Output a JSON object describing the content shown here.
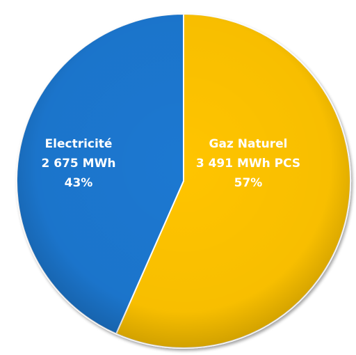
{
  "chart_data": {
    "type": "pie",
    "title": "",
    "slices": [
      {
        "name": "Gaz Naturel",
        "value": 3491,
        "value_label": "3 491 MWh PCS",
        "percent_label": "57%",
        "color": "#ffc400"
      },
      {
        "name": "Electricité",
        "value": 2675,
        "value_label": "2 675 MWh",
        "percent_label": "43%",
        "color": "#1f78d1"
      }
    ],
    "legend": "none"
  }
}
